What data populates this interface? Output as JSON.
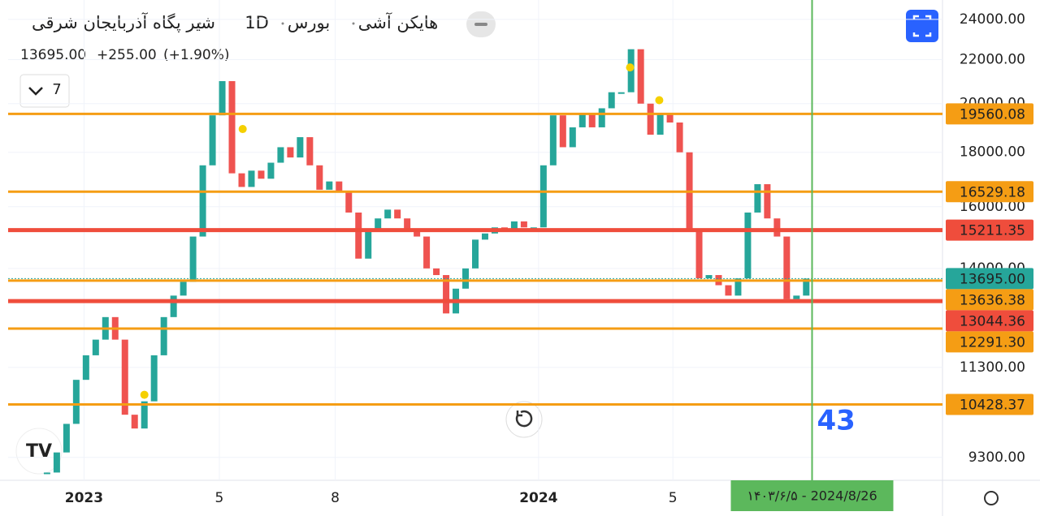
{
  "chart_data": {
    "type": "candlestick",
    "title_parts": [
      "شیر پگاه آذربایجان شرقی",
      "1D",
      "بورس",
      "هایکن آشی"
    ],
    "last_price": {
      "value": 13695,
      "label": "13695.00"
    },
    "change": "+255.00",
    "change_pct": "(+1.90%)",
    "indicator_count": "7",
    "log_scale": true,
    "ylim": [
      8850,
      25030
    ],
    "yticks": [
      {
        "value": 24000,
        "label": "24000.00"
      },
      {
        "value": 22000,
        "label": "22000.00"
      },
      {
        "value": 20000,
        "label": "20000.00"
      },
      {
        "value": 18000,
        "label": "18000.00"
      },
      {
        "value": 16000,
        "label": "16000.00"
      },
      {
        "value": 14000,
        "label": "14000.00"
      },
      {
        "value": 11300,
        "label": "11300.00"
      },
      {
        "value": 9300,
        "label": "9300.00"
      }
    ],
    "xlim": [
      -4,
      92
    ],
    "xticks": [
      {
        "value": 3.8,
        "label": "2023"
      },
      {
        "value": 17.7,
        "label": "5"
      },
      {
        "value": 29.6,
        "label": "8"
      },
      {
        "value": 50.5,
        "label": "2024"
      },
      {
        "value": 64.3,
        "label": "5"
      }
    ],
    "up_color": "#26a69a",
    "down_color": "#ef5350",
    "x": [
      0,
      1,
      2,
      3,
      4,
      5,
      6,
      7,
      8,
      9,
      10,
      11,
      12,
      13,
      14,
      15,
      16,
      17,
      18,
      19,
      20,
      21,
      22,
      23,
      24,
      25,
      26,
      27,
      28,
      29,
      30,
      31,
      32,
      33,
      34,
      35,
      36,
      37,
      38,
      39,
      40,
      41,
      42,
      43,
      44,
      45,
      46,
      47,
      48,
      49,
      50,
      51,
      52,
      53,
      54,
      55,
      56,
      57,
      58,
      59,
      60,
      61,
      62,
      63,
      64,
      65,
      66,
      67,
      68,
      69,
      70,
      71,
      72,
      73,
      74,
      75,
      76,
      77,
      78
    ],
    "close": [
      9000,
      9400,
      10000,
      11000,
      11600,
      12000,
      12600,
      12000,
      10200,
      9900,
      10500,
      11600,
      12600,
      13200,
      13600,
      15000,
      17500,
      19500,
      21000,
      17200,
      16700,
      17300,
      17000,
      17600,
      18200,
      17800,
      18600,
      17500,
      16600,
      16900,
      16500,
      15800,
      14300,
      15200,
      15600,
      15900,
      15600,
      15200,
      15000,
      14000,
      13800,
      12700,
      13400,
      14000,
      14900,
      15100,
      15300,
      15200,
      15500,
      15300,
      15300,
      17500,
      19500,
      18200,
      19000,
      19600,
      19000,
      19800,
      20500,
      20500,
      22500,
      20000,
      18700,
      19600,
      19200,
      18000,
      15200,
      13700,
      13800,
      13500,
      13200,
      13700,
      15800,
      16800,
      15600,
      15000,
      13100,
      13200,
      13695
    ],
    "levels": [
      {
        "value": 19560.08,
        "label": "19560.08",
        "color": "#f59d14"
      },
      {
        "value": 16529.18,
        "label": "16529.18",
        "color": "#f59d14"
      },
      {
        "value": 15211.35,
        "label": "15211.35",
        "color": "#ef4d3c"
      },
      {
        "value": 13636.38,
        "label": "13636.38",
        "color": "#f59d14"
      },
      {
        "value": 13044.36,
        "label": "13044.36",
        "color": "#ef4d3c"
      },
      {
        "value": 12291.3,
        "label": "12291.30",
        "color": "#f59d14"
      },
      {
        "value": 10428.37,
        "label": "10428.37",
        "color": "#f59d14"
      }
    ],
    "markers": {
      "x": [
        10.0,
        20.1,
        59.9,
        62.9
      ],
      "values": [
        10650,
        18930,
        21630,
        20150
      ],
      "color": "#f5d000"
    },
    "vline": {
      "x": 78.6,
      "count": "43",
      "date": "۱۴۰۳/۶/۵ - 2024/8/26",
      "color": "#5cb85c"
    }
  }
}
